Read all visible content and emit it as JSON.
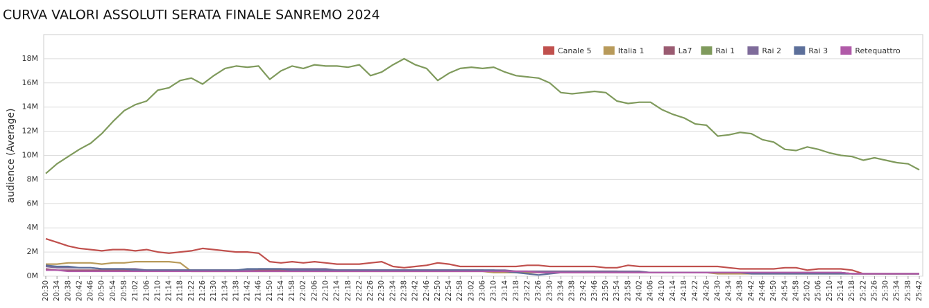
{
  "chart_data": {
    "type": "line",
    "title": "CURVA VALORI ASSOLUTI SERATA FINALE SANREMO 2024",
    "y_label": "audience (Average)",
    "categories": [
      "20:30",
      "20:34",
      "20:38",
      "20:42",
      "20:46",
      "20:50",
      "20:54",
      "20:58",
      "21:02",
      "21:06",
      "21:10",
      "21:14",
      "21:18",
      "21:22",
      "21:26",
      "21:30",
      "21:34",
      "21:38",
      "21:42",
      "21:46",
      "21:50",
      "21:54",
      "21:58",
      "22:02",
      "22:06",
      "22:10",
      "22:14",
      "22:18",
      "22:22",
      "22:26",
      "22:30",
      "22:34",
      "22:38",
      "22:42",
      "22:46",
      "22:50",
      "22:54",
      "22:58",
      "23:02",
      "23:06",
      "23:10",
      "23:14",
      "23:18",
      "23:22",
      "23:26",
      "23:30",
      "23:34",
      "23:38",
      "23:42",
      "23:46",
      "23:50",
      "23:54",
      "23:58",
      "24:02",
      "24:06",
      "24:10",
      "24:14",
      "24:18",
      "24:22",
      "24:26",
      "24:30",
      "24:34",
      "24:38",
      "24:42",
      "24:46",
      "24:50",
      "24:54",
      "24:58",
      "25:02",
      "25:06",
      "25:10",
      "25:14",
      "25:18",
      "25:22",
      "25:26",
      "25:30",
      "25:34",
      "25:38",
      "25:42"
    ],
    "series": [
      {
        "name": "Canale 5",
        "color": "#c0504d",
        "values": [
          3.1,
          2.8,
          2.5,
          2.3,
          2.2,
          2.1,
          2.2,
          2.2,
          2.1,
          2.2,
          2.0,
          1.9,
          2.0,
          2.1,
          2.3,
          2.2,
          2.1,
          2.0,
          2.0,
          1.9,
          1.2,
          1.1,
          1.2,
          1.1,
          1.2,
          1.1,
          1.0,
          1.0,
          1.0,
          1.1,
          1.2,
          0.8,
          0.7,
          0.8,
          0.9,
          1.1,
          1.0,
          0.8,
          0.8,
          0.8,
          0.8,
          0.8,
          0.8,
          0.9,
          0.9,
          0.8,
          0.8,
          0.8,
          0.8,
          0.8,
          0.7,
          0.7,
          0.9,
          0.8,
          0.8,
          0.8,
          0.8,
          0.8,
          0.8,
          0.8,
          0.8,
          0.7,
          0.6,
          0.6,
          0.6,
          0.6,
          0.7,
          0.7,
          0.5,
          0.6,
          0.6,
          0.6,
          0.5,
          0.2,
          0.2,
          0.2,
          0.2,
          0.2,
          0.2
        ]
      },
      {
        "name": "Italia 1",
        "color": "#b89a5a",
        "values": [
          1.0,
          1.0,
          1.1,
          1.1,
          1.1,
          1.0,
          1.1,
          1.1,
          1.2,
          1.2,
          1.2,
          1.2,
          1.1,
          0.4,
          0.4,
          0.4,
          0.4,
          0.4,
          0.4,
          0.4,
          0.4,
          0.4,
          0.4,
          0.4,
          0.4,
          0.4,
          0.4,
          0.4,
          0.4,
          0.4,
          0.4,
          0.4,
          0.4,
          0.4,
          0.4,
          0.4,
          0.4,
          0.4,
          0.4,
          0.4,
          0.3,
          0.3,
          0.3,
          0.3,
          0.3,
          0.3,
          0.3,
          0.3,
          0.3,
          0.3,
          0.3,
          0.3,
          0.3,
          0.3,
          0.3,
          0.3,
          0.3,
          0.3,
          0.3,
          0.3,
          0.2,
          0.2,
          0.2,
          0.2,
          0.2,
          0.2,
          0.2,
          0.2,
          0.2,
          0.2,
          0.2,
          0.2,
          0.2,
          0.2,
          0.2,
          0.2,
          0.2,
          0.2,
          0.2
        ]
      },
      {
        "name": "La7",
        "color": "#9a5b71",
        "values": [
          0.6,
          0.5,
          0.5,
          0.5,
          0.5,
          0.5,
          0.5,
          0.5,
          0.5,
          0.5,
          0.5,
          0.5,
          0.5,
          0.5,
          0.5,
          0.5,
          0.5,
          0.5,
          0.5,
          0.5,
          0.5,
          0.5,
          0.5,
          0.5,
          0.5,
          0.5,
          0.5,
          0.5,
          0.5,
          0.5,
          0.5,
          0.5,
          0.5,
          0.5,
          0.5,
          0.5,
          0.5,
          0.5,
          0.5,
          0.5,
          0.4,
          0.4,
          0.4,
          0.4,
          0.4,
          0.4,
          0.4,
          0.4,
          0.4,
          0.4,
          0.4,
          0.4,
          0.3,
          0.3,
          0.3,
          0.3,
          0.3,
          0.3,
          0.3,
          0.3,
          0.3,
          0.3,
          0.3,
          0.3,
          0.3,
          0.3,
          0.3,
          0.3,
          0.3,
          0.3,
          0.3,
          0.3,
          0.2,
          0.2,
          0.2,
          0.2,
          0.2,
          0.2,
          0.2
        ]
      },
      {
        "name": "Rai 1",
        "color": "#7f9a5c",
        "values": [
          8.5,
          9.3,
          9.9,
          10.5,
          11.0,
          11.8,
          12.8,
          13.7,
          14.2,
          14.5,
          15.4,
          15.6,
          16.2,
          16.4,
          15.9,
          16.6,
          17.2,
          17.4,
          17.3,
          17.4,
          16.3,
          17.0,
          17.4,
          17.2,
          17.5,
          17.4,
          17.4,
          17.3,
          17.5,
          16.6,
          16.9,
          17.5,
          18.0,
          17.5,
          17.2,
          16.2,
          16.8,
          17.2,
          17.3,
          17.2,
          17.3,
          16.9,
          16.6,
          16.5,
          16.4,
          16.0,
          15.2,
          15.1,
          15.2,
          15.3,
          15.2,
          14.5,
          14.3,
          14.4,
          14.4,
          13.8,
          13.4,
          13.1,
          12.6,
          12.5,
          11.6,
          11.7,
          11.9,
          11.8,
          11.3,
          11.1,
          10.5,
          10.4,
          10.7,
          10.5,
          10.2,
          10.0,
          9.9,
          9.6,
          9.8,
          9.6,
          9.4,
          9.3,
          8.8
        ]
      },
      {
        "name": "Rai 2",
        "color": "#7e6b9a",
        "values": [
          0.8,
          0.7,
          0.7,
          0.7,
          0.7,
          0.6,
          0.6,
          0.6,
          0.6,
          0.5,
          0.5,
          0.5,
          0.5,
          0.5,
          0.5,
          0.5,
          0.5,
          0.5,
          0.5,
          0.6,
          0.6,
          0.6,
          0.6,
          0.6,
          0.6,
          0.6,
          0.5,
          0.5,
          0.5,
          0.5,
          0.5,
          0.5,
          0.5,
          0.5,
          0.5,
          0.5,
          0.5,
          0.5,
          0.5,
          0.5,
          0.5,
          0.5,
          0.4,
          0.4,
          0.4,
          0.4,
          0.4,
          0.4,
          0.4,
          0.4,
          0.4,
          0.4,
          0.4,
          0.4,
          0.3,
          0.3,
          0.3,
          0.3,
          0.3,
          0.3,
          0.3,
          0.3,
          0.3,
          0.3,
          0.3,
          0.3,
          0.3,
          0.3,
          0.3,
          0.3,
          0.3,
          0.3,
          0.2,
          0.2,
          0.2,
          0.2,
          0.2,
          0.2,
          0.2
        ]
      },
      {
        "name": "Rai 3",
        "color": "#5c6f9a",
        "values": [
          0.9,
          0.8,
          0.8,
          0.7,
          0.7,
          0.6,
          0.6,
          0.6,
          0.5,
          0.5,
          0.5,
          0.5,
          0.5,
          0.5,
          0.5,
          0.5,
          0.5,
          0.5,
          0.6,
          0.6,
          0.6,
          0.6,
          0.5,
          0.5,
          0.5,
          0.5,
          0.5,
          0.5,
          0.5,
          0.5,
          0.5,
          0.5,
          0.5,
          0.5,
          0.5,
          0.5,
          0.5,
          0.5,
          0.5,
          0.5,
          0.5,
          0.4,
          0.3,
          0.2,
          0.1,
          0.2,
          0.3,
          0.3,
          0.3,
          0.3,
          0.3,
          0.3,
          0.3,
          0.3,
          0.3,
          0.3,
          0.3,
          0.3,
          0.3,
          0.3,
          0.3,
          0.3,
          0.3,
          0.2,
          0.2,
          0.2,
          0.2,
          0.2,
          0.2,
          0.2,
          0.2,
          0.2,
          0.2,
          0.2,
          0.2,
          0.2,
          0.2,
          0.2,
          0.2
        ]
      },
      {
        "name": "Retequattro",
        "color": "#b05aa8",
        "values": [
          0.5,
          0.5,
          0.4,
          0.4,
          0.4,
          0.4,
          0.4,
          0.4,
          0.4,
          0.4,
          0.4,
          0.4,
          0.4,
          0.4,
          0.4,
          0.4,
          0.4,
          0.4,
          0.4,
          0.4,
          0.4,
          0.4,
          0.4,
          0.4,
          0.4,
          0.4,
          0.4,
          0.4,
          0.4,
          0.4,
          0.4,
          0.4,
          0.4,
          0.4,
          0.4,
          0.4,
          0.4,
          0.4,
          0.4,
          0.4,
          0.4,
          0.4,
          0.4,
          0.4,
          0.3,
          0.3,
          0.3,
          0.3,
          0.3,
          0.3,
          0.3,
          0.3,
          0.3,
          0.3,
          0.3,
          0.3,
          0.3,
          0.3,
          0.3,
          0.3,
          0.3,
          0.3,
          0.3,
          0.3,
          0.3,
          0.3,
          0.3,
          0.3,
          0.3,
          0.3,
          0.3,
          0.3,
          0.2,
          0.2,
          0.2,
          0.2,
          0.2,
          0.2,
          0.2
        ]
      }
    ],
    "ylim": [
      0,
      20
    ],
    "yticks": [
      {
        "value": 0,
        "label": "0M"
      },
      {
        "value": 2,
        "label": "2M"
      },
      {
        "value": 4,
        "label": "4M"
      },
      {
        "value": 6,
        "label": "6M"
      },
      {
        "value": 8,
        "label": "8M"
      },
      {
        "value": 10,
        "label": "10M"
      },
      {
        "value": 12,
        "label": "12M"
      },
      {
        "value": 14,
        "label": "14M"
      },
      {
        "value": 16,
        "label": "16M"
      },
      {
        "value": 18,
        "label": "18M"
      }
    ],
    "grid": true,
    "legend": "top-right"
  }
}
